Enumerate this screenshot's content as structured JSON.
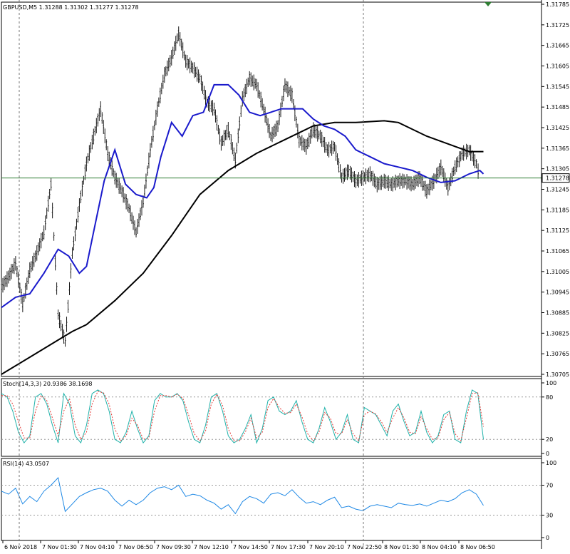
{
  "colors": {
    "background": "#ffffff",
    "candles": "#1a1a1a",
    "ma_fast": "#1a1acc",
    "ma_slow": "#000000",
    "price_line": "#2e7d32",
    "stoch_main": "#20b2aa",
    "stoch_signal": "#e53935",
    "rsi": "#1e88e5",
    "grid_vline": "#777777",
    "marker": "#2e7d32"
  },
  "chart_data": [
    {
      "type": "candlestick",
      "title": "GBPUSD,M5  1.31288 1.31302 1.31277 1.31278",
      "y_ticks": [
        "1.31785",
        "1.31725",
        "1.31665",
        "1.31605",
        "1.31545",
        "1.31485",
        "1.31425",
        "1.31365",
        "1.31305",
        "1.31245",
        "1.31185",
        "1.31125",
        "1.31065",
        "1.31005",
        "1.30945",
        "1.30885",
        "1.30825",
        "1.30765",
        "1.30705"
      ],
      "ylim": [
        1.30705,
        1.31785
      ],
      "current_price": "1.31278",
      "x_ticks": [
        "6 Nov 2018",
        "7 Nov 01:30",
        "7 Nov 04:10",
        "7 Nov 06:50",
        "7 Nov 09:30",
        "7 Nov 12:10",
        "7 Nov 14:50",
        "7 Nov 17:30",
        "7 Nov 20:10",
        "7 Nov 22:50",
        "8 Nov 01:30",
        "8 Nov 04:10",
        "8 Nov 06:50"
      ],
      "session_separators": [
        "6 Nov 2018",
        "7 Nov 22:50"
      ],
      "series": [
        {
          "name": "",
          "kind": "close",
          "x": [
            0,
            10,
            20,
            30,
            40,
            50,
            60,
            70,
            80,
            90,
            100,
            110,
            120,
            130,
            140,
            150,
            160,
            170,
            180,
            190,
            200,
            210,
            220,
            230,
            240,
            250,
            260,
            270,
            280,
            290,
            300,
            310,
            320,
            330,
            340,
            350,
            360,
            370,
            380,
            390,
            400,
            410,
            420,
            430,
            440,
            450,
            460,
            470,
            480,
            490,
            500,
            510,
            520,
            530,
            540,
            550,
            560,
            570,
            580,
            590,
            600,
            610,
            620,
            630,
            640,
            650,
            660,
            670,
            675
          ],
          "y": [
            1.3096,
            1.3099,
            1.3103,
            1.3091,
            1.3101,
            1.3106,
            1.3112,
            1.3126,
            1.3088,
            1.308,
            1.3106,
            1.312,
            1.3132,
            1.314,
            1.3148,
            1.3135,
            1.3128,
            1.3124,
            1.3119,
            1.3112,
            1.3121,
            1.3136,
            1.3148,
            1.3158,
            1.3163,
            1.317,
            1.3162,
            1.316,
            1.3157,
            1.315,
            1.3148,
            1.3138,
            1.3142,
            1.3133,
            1.3151,
            1.3157,
            1.3155,
            1.3148,
            1.314,
            1.3143,
            1.3155,
            1.3152,
            1.3139,
            1.3137,
            1.3142,
            1.314,
            1.3136,
            1.3137,
            1.3128,
            1.313,
            1.3127,
            1.3128,
            1.3129,
            1.3126,
            1.3127,
            1.3126,
            1.3127,
            1.3127,
            1.3126,
            1.3128,
            1.3124,
            1.3127,
            1.3131,
            1.3125,
            1.3131,
            1.3135,
            1.3136,
            1.3132,
            1.31278
          ]
        },
        {
          "name": "",
          "kind": "moving_average",
          "x": [
            0,
            20,
            40,
            60,
            80,
            95,
            110,
            120,
            130,
            145,
            160,
            175,
            190,
            205,
            215,
            225,
            240,
            255,
            270,
            285,
            300,
            320,
            335,
            350,
            365,
            380,
            395,
            410,
            425,
            440,
            455,
            470,
            485,
            500,
            520,
            540,
            560,
            580,
            600,
            620,
            640,
            660,
            675,
            680
          ],
          "y": [
            1.309,
            1.3093,
            1.3094,
            1.31,
            1.3107,
            1.3105,
            1.31,
            1.3102,
            1.3112,
            1.3127,
            1.3136,
            1.3126,
            1.3123,
            1.3122,
            1.3125,
            1.3134,
            1.3144,
            1.314,
            1.3146,
            1.3147,
            1.3155,
            1.3155,
            1.3152,
            1.3147,
            1.3146,
            1.3147,
            1.3148,
            1.3148,
            1.3148,
            1.3145,
            1.3143,
            1.3142,
            1.314,
            1.3136,
            1.3134,
            1.3132,
            1.3131,
            1.313,
            1.3128,
            1.31265,
            1.3127,
            1.3129,
            1.313,
            1.3129
          ]
        },
        {
          "name": "",
          "kind": "moving_average",
          "x": [
            0,
            40,
            80,
            100,
            120,
            160,
            200,
            240,
            280,
            320,
            360,
            400,
            440,
            470,
            500,
            540,
            560,
            600,
            640,
            660,
            680
          ],
          "y": [
            1.30705,
            1.30755,
            1.30805,
            1.3083,
            1.3085,
            1.3092,
            1.31,
            1.3111,
            1.3123,
            1.313,
            1.3135,
            1.3139,
            1.3143,
            1.3144,
            1.3144,
            1.31445,
            1.3144,
            1.314,
            1.3137,
            1.31355,
            1.31355
          ]
        }
      ]
    },
    {
      "type": "line",
      "title": "Stoch(14,3,3) 20.9386 38.1698",
      "y_ticks": [
        "100",
        "80",
        "20",
        "0"
      ],
      "ylim": [
        0,
        100
      ],
      "series": [
        {
          "name": "",
          "x": [
            0,
            8,
            16,
            24,
            32,
            40,
            48,
            56,
            64,
            72,
            80,
            88,
            96,
            104,
            112,
            120,
            128,
            136,
            144,
            152,
            160,
            168,
            176,
            184,
            192,
            200,
            208,
            216,
            224,
            232,
            240,
            248,
            256,
            264,
            272,
            280,
            288,
            296,
            304,
            312,
            320,
            328,
            336,
            344,
            352,
            360,
            368,
            376,
            384,
            392,
            400,
            408,
            416,
            424,
            432,
            440,
            448,
            456,
            464,
            472,
            480,
            488,
            496,
            504,
            512,
            520,
            528,
            536,
            544,
            552,
            560,
            568,
            576,
            584,
            592,
            600,
            608,
            616,
            624,
            632,
            640,
            648,
            656,
            664,
            672,
            680
          ],
          "y": [
            85,
            80,
            60,
            30,
            15,
            25,
            80,
            85,
            70,
            40,
            15,
            85,
            70,
            25,
            15,
            40,
            85,
            90,
            85,
            60,
            20,
            15,
            30,
            60,
            35,
            15,
            25,
            75,
            85,
            80,
            80,
            85,
            75,
            45,
            20,
            15,
            40,
            80,
            85,
            60,
            25,
            15,
            20,
            35,
            55,
            15,
            35,
            75,
            80,
            60,
            55,
            60,
            75,
            45,
            20,
            15,
            35,
            65,
            45,
            20,
            30,
            55,
            20,
            15,
            65,
            60,
            55,
            40,
            25,
            60,
            70,
            45,
            25,
            30,
            60,
            30,
            15,
            25,
            55,
            60,
            20,
            15,
            60,
            90,
            85,
            20
          ]
        },
        {
          "name": "",
          "x": [
            0,
            8,
            16,
            24,
            32,
            40,
            48,
            56,
            64,
            72,
            80,
            88,
            96,
            104,
            112,
            120,
            128,
            136,
            144,
            152,
            160,
            168,
            176,
            184,
            192,
            200,
            208,
            216,
            224,
            232,
            240,
            248,
            256,
            264,
            272,
            280,
            288,
            296,
            304,
            312,
            320,
            328,
            336,
            344,
            352,
            360,
            368,
            376,
            384,
            392,
            400,
            408,
            416,
            424,
            432,
            440,
            448,
            456,
            464,
            472,
            480,
            488,
            496,
            504,
            512,
            520,
            528,
            536,
            544,
            552,
            560,
            568,
            576,
            584,
            592,
            600,
            608,
            616,
            624,
            632,
            640,
            648,
            656,
            664,
            672,
            680
          ],
          "y": [
            82,
            82,
            70,
            45,
            22,
            22,
            60,
            82,
            75,
            50,
            25,
            60,
            78,
            40,
            20,
            30,
            70,
            88,
            86,
            70,
            35,
            18,
            25,
            50,
            40,
            20,
            22,
            60,
            82,
            82,
            80,
            84,
            78,
            55,
            28,
            18,
            32,
            70,
            84,
            68,
            35,
            18,
            18,
            30,
            50,
            22,
            30,
            65,
            78,
            65,
            57,
            58,
            70,
            52,
            28,
            18,
            30,
            58,
            50,
            28,
            28,
            48,
            28,
            18,
            55,
            60,
            56,
            45,
            30,
            50,
            65,
            50,
            30,
            28,
            52,
            35,
            20,
            22,
            48,
            58,
            28,
            18,
            50,
            85,
            86,
            38
          ]
        }
      ]
    },
    {
      "type": "line",
      "title": "RSI(14) 43.0507",
      "y_ticks": [
        "100",
        "70",
        "30",
        "0"
      ],
      "ylim": [
        0,
        100
      ],
      "series": [
        {
          "name": "",
          "x": [
            0,
            10,
            20,
            30,
            40,
            50,
            60,
            70,
            80,
            90,
            100,
            110,
            120,
            130,
            140,
            150,
            160,
            170,
            180,
            190,
            200,
            210,
            220,
            230,
            240,
            250,
            260,
            270,
            280,
            290,
            300,
            310,
            320,
            330,
            340,
            350,
            360,
            370,
            380,
            390,
            400,
            410,
            420,
            430,
            440,
            450,
            460,
            470,
            480,
            490,
            500,
            510,
            520,
            530,
            540,
            550,
            560,
            570,
            580,
            590,
            600,
            610,
            620,
            630,
            640,
            650,
            660,
            670,
            680
          ],
          "y": [
            62,
            58,
            66,
            45,
            55,
            48,
            62,
            70,
            80,
            35,
            45,
            55,
            60,
            64,
            66,
            62,
            50,
            42,
            50,
            44,
            50,
            60,
            66,
            68,
            64,
            70,
            55,
            58,
            56,
            50,
            46,
            38,
            44,
            32,
            48,
            55,
            52,
            46,
            58,
            60,
            56,
            64,
            54,
            46,
            48,
            44,
            50,
            54,
            40,
            42,
            38,
            36,
            42,
            44,
            42,
            40,
            46,
            44,
            43,
            45,
            42,
            46,
            50,
            48,
            52,
            60,
            64,
            58,
            43
          ]
        }
      ]
    }
  ]
}
